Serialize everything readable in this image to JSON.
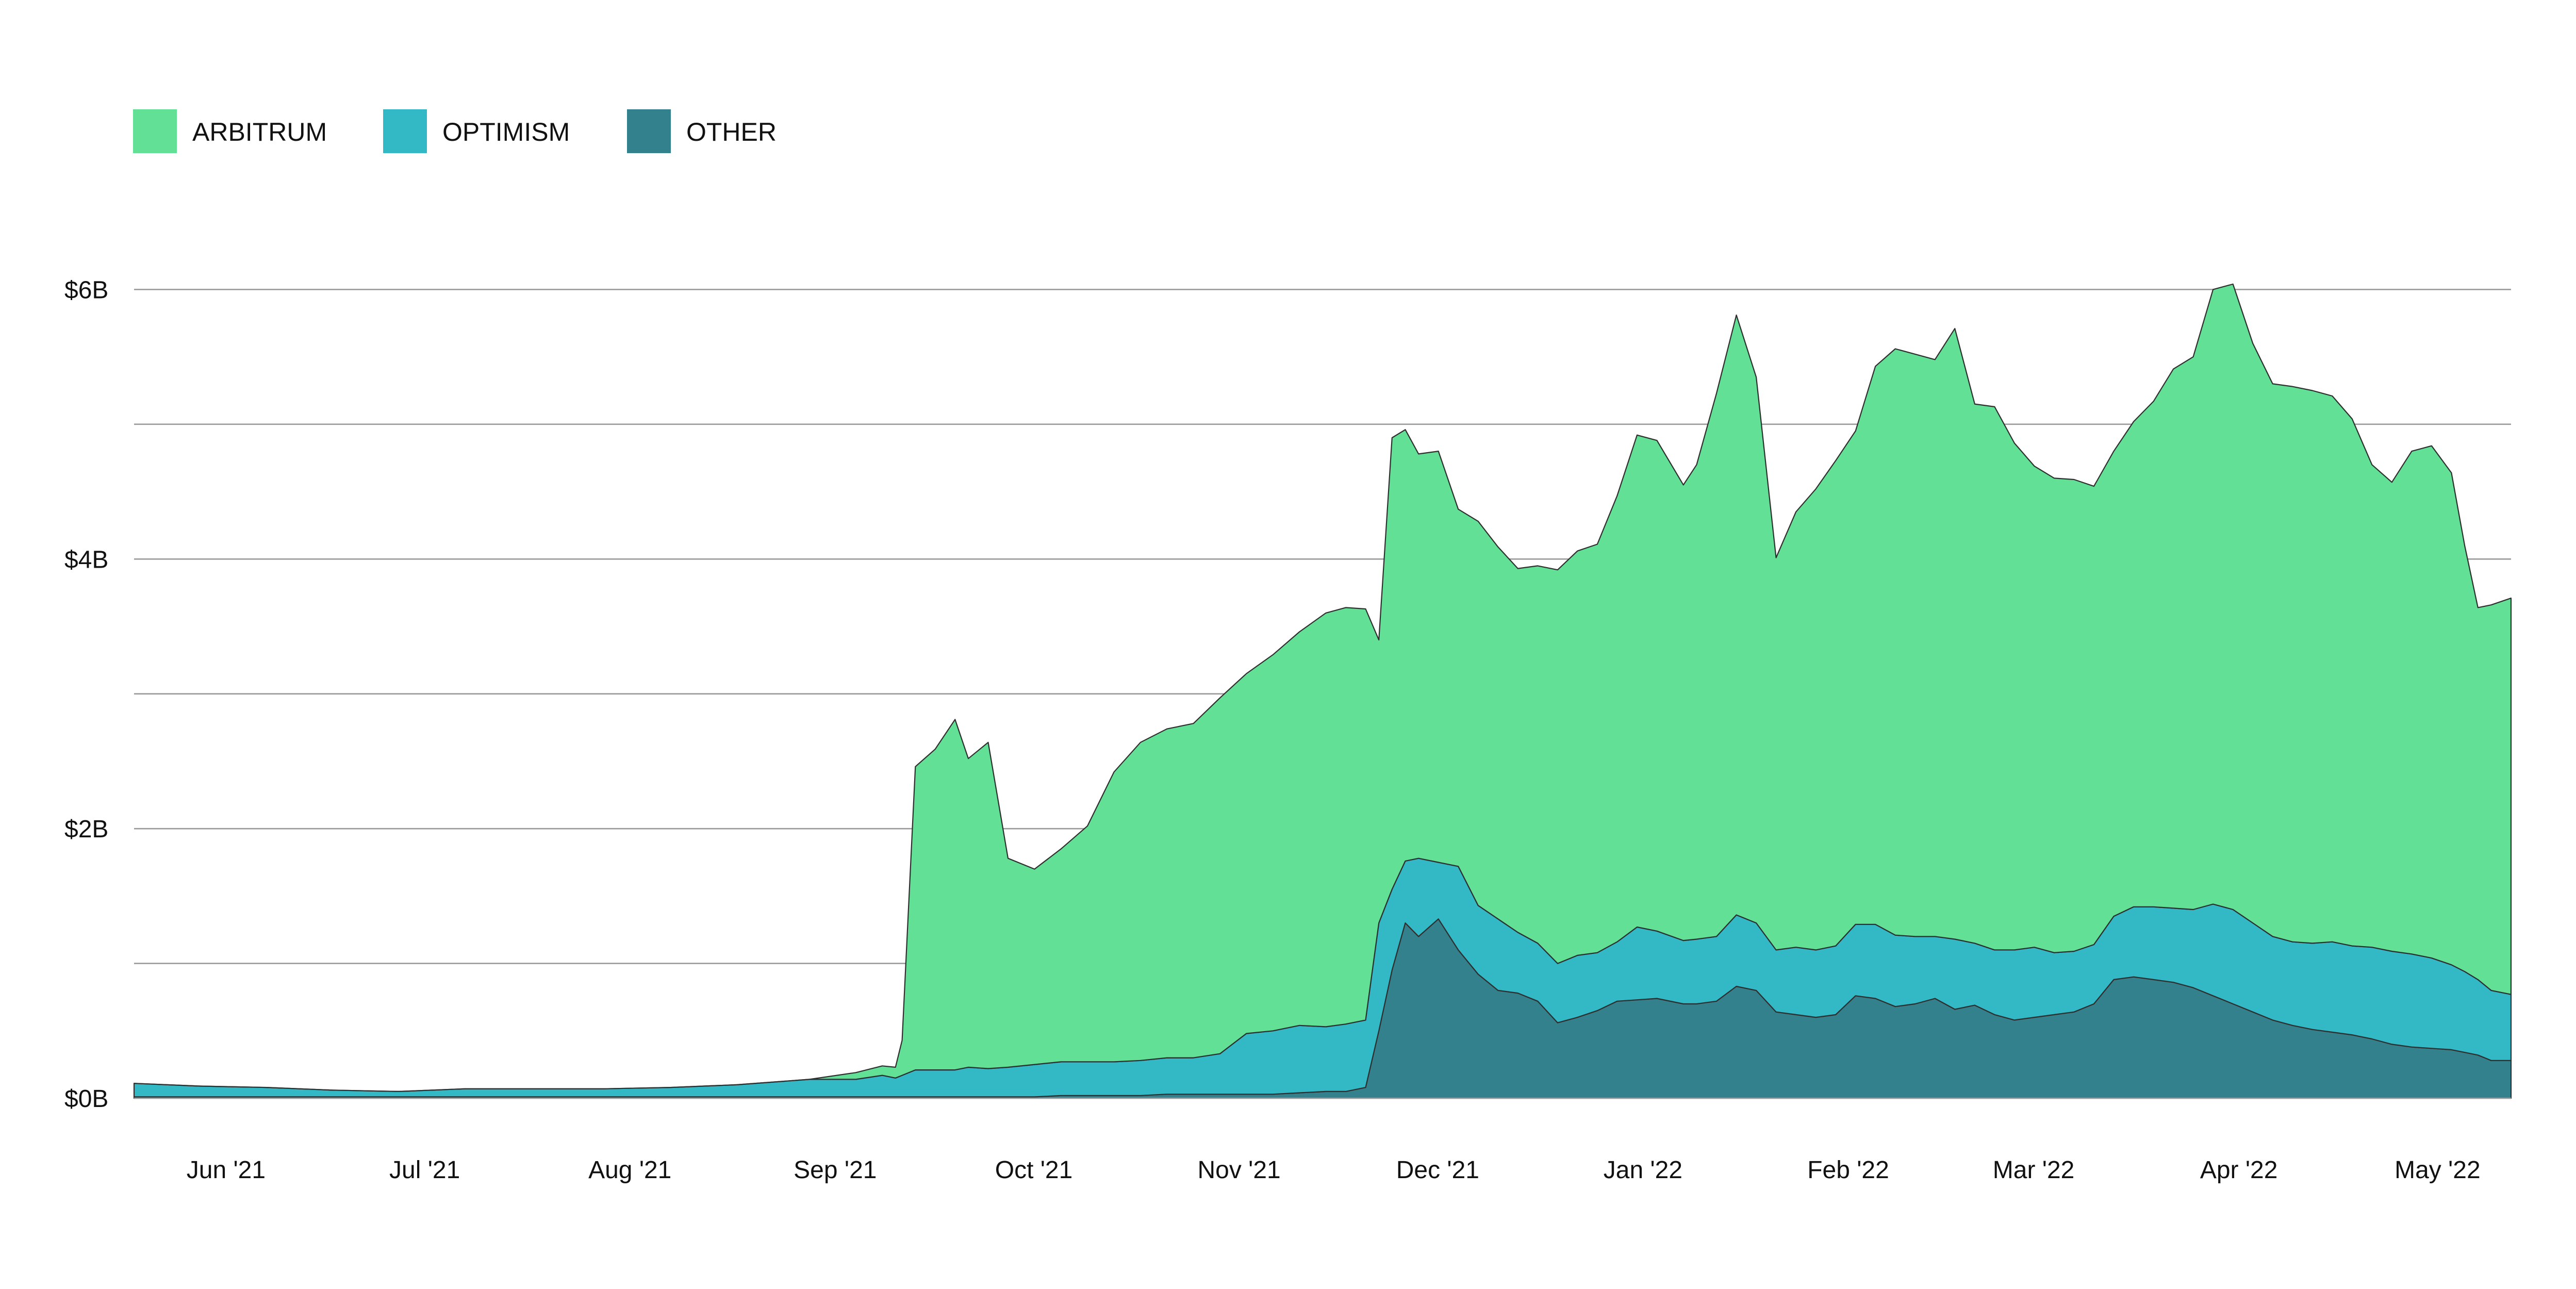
{
  "chart_data": {
    "type": "area",
    "stacked": true,
    "title": "",
    "xlabel": "",
    "ylabel": "",
    "y_unit": "$B",
    "ylim": [
      0,
      7
    ],
    "y_ticks": [
      {
        "value": 0,
        "label": "$0B"
      },
      {
        "value": 1,
        "label": ""
      },
      {
        "value": 2,
        "label": "$2B"
      },
      {
        "value": 3,
        "label": ""
      },
      {
        "value": 4,
        "label": "$4B"
      },
      {
        "value": 5,
        "label": ""
      },
      {
        "value": 6,
        "label": "$6B"
      }
    ],
    "xlim": [
      "2021-05-22",
      "2022-05-16"
    ],
    "x_ticks": [
      {
        "date": "2021-06-01",
        "label": "Jun '21"
      },
      {
        "date": "2021-07-01",
        "label": "Jul '21"
      },
      {
        "date": "2021-08-01",
        "label": "Aug '21"
      },
      {
        "date": "2021-09-01",
        "label": "Sep '21"
      },
      {
        "date": "2021-10-01",
        "label": "Oct '21"
      },
      {
        "date": "2021-11-01",
        "label": "Nov '21"
      },
      {
        "date": "2021-12-01",
        "label": "Dec '21"
      },
      {
        "date": "2022-01-01",
        "label": "Jan '22"
      },
      {
        "date": "2022-02-01",
        "label": "Feb '22"
      },
      {
        "date": "2022-03-01",
        "label": "Mar '22"
      },
      {
        "date": "2022-04-01",
        "label": "Apr '22"
      },
      {
        "date": "2022-05-01",
        "label": "May '22"
      }
    ],
    "grid": true,
    "legend_position": "top-left",
    "x": [
      "2021-05-22",
      "2021-06-01",
      "2021-06-11",
      "2021-06-21",
      "2021-07-01",
      "2021-07-11",
      "2021-07-21",
      "2021-08-01",
      "2021-08-11",
      "2021-08-21",
      "2021-09-01",
      "2021-09-08",
      "2021-09-12",
      "2021-09-14",
      "2021-09-15",
      "2021-09-17",
      "2021-09-20",
      "2021-09-23",
      "2021-09-25",
      "2021-09-28",
      "2021-10-01",
      "2021-10-05",
      "2021-10-09",
      "2021-10-13",
      "2021-10-17",
      "2021-10-21",
      "2021-10-25",
      "2021-10-29",
      "2021-11-02",
      "2021-11-06",
      "2021-11-10",
      "2021-11-14",
      "2021-11-18",
      "2021-11-21",
      "2021-11-24",
      "2021-11-26",
      "2021-11-28",
      "2021-11-30",
      "2021-12-02",
      "2021-12-05",
      "2021-12-08",
      "2021-12-11",
      "2021-12-14",
      "2021-12-17",
      "2021-12-20",
      "2021-12-23",
      "2021-12-26",
      "2021-12-29",
      "2022-01-01",
      "2022-01-04",
      "2022-01-07",
      "2022-01-11",
      "2022-01-13",
      "2022-01-16",
      "2022-01-19",
      "2022-01-22",
      "2022-01-25",
      "2022-01-28",
      "2022-01-31",
      "2022-02-03",
      "2022-02-06",
      "2022-02-09",
      "2022-02-12",
      "2022-02-15",
      "2022-02-18",
      "2022-02-21",
      "2022-02-24",
      "2022-02-27",
      "2022-03-02",
      "2022-03-05",
      "2022-03-08",
      "2022-03-11",
      "2022-03-14",
      "2022-03-17",
      "2022-03-20",
      "2022-03-23",
      "2022-03-26",
      "2022-03-29",
      "2022-04-01",
      "2022-04-04",
      "2022-04-07",
      "2022-04-10",
      "2022-04-13",
      "2022-04-16",
      "2022-04-19",
      "2022-04-22",
      "2022-04-25",
      "2022-04-28",
      "2022-05-01",
      "2022-05-04",
      "2022-05-07",
      "2022-05-09",
      "2022-05-11",
      "2022-05-13",
      "2022-05-16"
    ],
    "series": [
      {
        "name": "OTHER",
        "color": "#34818e",
        "values": [
          0.01,
          0.01,
          0.01,
          0.01,
          0.01,
          0.01,
          0.01,
          0.01,
          0.01,
          0.01,
          0.01,
          0.01,
          0.01,
          0.01,
          0.01,
          0.01,
          0.01,
          0.01,
          0.01,
          0.01,
          0.01,
          0.01,
          0.02,
          0.02,
          0.02,
          0.02,
          0.03,
          0.03,
          0.03,
          0.03,
          0.03,
          0.04,
          0.05,
          0.05,
          0.08,
          0.5,
          0.95,
          1.3,
          1.2,
          1.33,
          1.1,
          0.92,
          0.8,
          0.78,
          0.72,
          0.56,
          0.6,
          0.65,
          0.72,
          0.73,
          0.74,
          0.7,
          0.7,
          0.72,
          0.83,
          0.8,
          0.64,
          0.62,
          0.6,
          0.62,
          0.76,
          0.74,
          0.68,
          0.7,
          0.74,
          0.66,
          0.69,
          0.62,
          0.58,
          0.6,
          0.62,
          0.64,
          0.7,
          0.88,
          0.9,
          0.88,
          0.86,
          0.82,
          0.76,
          0.7,
          0.64,
          0.58,
          0.54,
          0.51,
          0.49,
          0.47,
          0.44,
          0.4,
          0.38,
          0.37,
          0.36,
          0.34,
          0.32,
          0.28,
          0.28
        ]
      },
      {
        "name": "OPTIMISM",
        "color": "#33b8c6",
        "values": [
          0.1,
          0.08,
          0.07,
          0.05,
          0.04,
          0.06,
          0.06,
          0.06,
          0.07,
          0.09,
          0.13,
          0.13,
          0.16,
          0.14,
          0.16,
          0.2,
          0.2,
          0.2,
          0.22,
          0.21,
          0.22,
          0.24,
          0.25,
          0.25,
          0.25,
          0.26,
          0.27,
          0.27,
          0.3,
          0.45,
          0.47,
          0.5,
          0.48,
          0.5,
          0.5,
          0.8,
          0.6,
          0.46,
          0.58,
          0.42,
          0.62,
          0.51,
          0.53,
          0.45,
          0.43,
          0.44,
          0.46,
          0.43,
          0.44,
          0.54,
          0.5,
          0.47,
          0.48,
          0.48,
          0.53,
          0.5,
          0.46,
          0.5,
          0.5,
          0.51,
          0.53,
          0.55,
          0.53,
          0.5,
          0.46,
          0.52,
          0.46,
          0.48,
          0.52,
          0.52,
          0.46,
          0.45,
          0.44,
          0.47,
          0.52,
          0.54,
          0.55,
          0.58,
          0.68,
          0.7,
          0.66,
          0.62,
          0.62,
          0.64,
          0.67,
          0.66,
          0.68,
          0.69,
          0.69,
          0.67,
          0.63,
          0.6,
          0.56,
          0.52,
          0.49
        ]
      },
      {
        "name": "ARBITRUM",
        "color": "#62e196",
        "values": [
          0.0,
          0.0,
          0.0,
          0.0,
          0.0,
          0.0,
          0.0,
          0.0,
          0.0,
          0.0,
          0.0,
          0.05,
          0.07,
          0.08,
          0.26,
          2.25,
          2.38,
          2.6,
          2.29,
          2.42,
          1.55,
          1.45,
          1.58,
          1.75,
          2.15,
          2.36,
          2.44,
          2.48,
          2.64,
          2.67,
          2.79,
          2.92,
          3.07,
          3.09,
          3.05,
          2.1,
          3.35,
          3.2,
          3.0,
          3.05,
          2.65,
          2.85,
          2.76,
          2.7,
          2.8,
          2.92,
          3.0,
          3.03,
          3.31,
          3.65,
          3.64,
          3.38,
          3.52,
          4.03,
          4.45,
          4.05,
          2.91,
          3.23,
          3.42,
          3.6,
          3.66,
          4.14,
          4.35,
          4.32,
          4.28,
          4.53,
          4.0,
          4.03,
          3.76,
          3.57,
          3.52,
          3.5,
          3.4,
          3.45,
          3.6,
          3.75,
          4.0,
          4.1,
          4.56,
          4.64,
          4.3,
          4.1,
          4.12,
          4.1,
          4.05,
          3.91,
          3.58,
          3.48,
          3.73,
          3.8,
          3.65,
          3.16,
          2.76,
          2.86,
          2.94
        ]
      }
    ]
  },
  "legend": {
    "items": [
      {
        "label": "ARBITRUM",
        "color": "#62e196"
      },
      {
        "label": "OPTIMISM",
        "color": "#33b8c6"
      },
      {
        "label": "OTHER",
        "color": "#34818e"
      }
    ]
  }
}
